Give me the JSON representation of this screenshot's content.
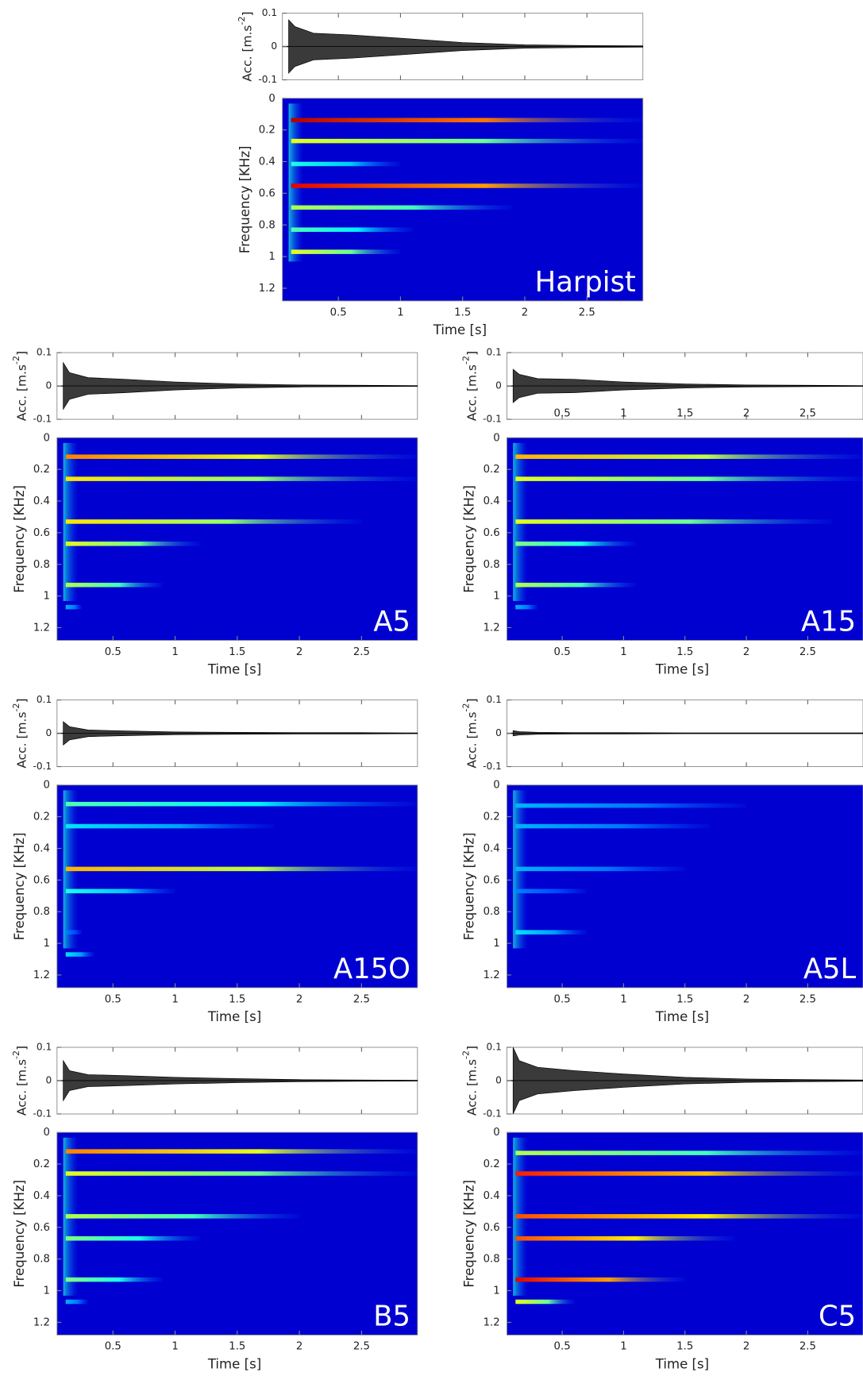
{
  "chart_data": [
    {
      "type": "spectrogram",
      "label": "Harpist",
      "xlabel": "Time [s]",
      "ylabel": "Frequency [KHz]",
      "xlim": [
        0.05,
        2.95
      ],
      "xticks": [
        0.5,
        1,
        1.5,
        2,
        2.5
      ],
      "ylim": [
        0,
        1.28
      ],
      "y_reversed": true,
      "yticks": [
        0,
        0.2,
        0.4,
        0.6,
        0.8,
        1,
        1.2
      ],
      "acc": {
        "ylabel": [
          "Acc. [m.s",
          "-2",
          "]"
        ],
        "ylim": [
          -0.1,
          0.1
        ],
        "yticks": [
          -0.1,
          0,
          0.1
        ],
        "xtick_labels": false,
        "x": [
          0.1,
          0.15,
          0.3,
          0.6,
          1,
          1.5,
          2,
          2.5,
          2.95
        ],
        "values": [
          0.08,
          0.06,
          0.04,
          0.035,
          0.025,
          0.012,
          0.005,
          0.003,
          0.002
        ]
      },
      "harmonics": {
        "freq": [
          0.138,
          0.27,
          0.415,
          0.553,
          0.69,
          0.83,
          0.97
        ],
        "end": [
          2.95,
          2.95,
          1.0,
          2.95,
          1.9,
          1.1,
          1.0
        ],
        "level": [
          0.95,
          0.6,
          0.4,
          0.9,
          0.55,
          0.45,
          0.6
        ]
      }
    },
    {
      "type": "spectrogram",
      "label": "A5",
      "xlabel": "Time [s]",
      "ylabel": "Frequency [KHz]",
      "xlim": [
        0.05,
        2.95
      ],
      "xticks": [
        0.5,
        1,
        1.5,
        2,
        2.5
      ],
      "ylim": [
        0,
        1.28
      ],
      "y_reversed": true,
      "yticks": [
        0,
        0.2,
        0.4,
        0.6,
        0.8,
        1,
        1.2
      ],
      "acc": {
        "ylabel": [
          "Acc. [m.s",
          "-2",
          "]"
        ],
        "ylim": [
          -0.1,
          0.1
        ],
        "yticks": [
          -0.1,
          0,
          0.1
        ],
        "xtick_labels": false,
        "x": [
          0.1,
          0.15,
          0.3,
          0.6,
          1,
          1.5,
          2,
          2.5,
          2.95
        ],
        "values": [
          0.07,
          0.04,
          0.025,
          0.02,
          0.012,
          0.006,
          0.003,
          0.002,
          0.001
        ]
      },
      "harmonics": {
        "freq": [
          0.12,
          0.26,
          0.53,
          0.67,
          0.93,
          1.07
        ],
        "end": [
          2.95,
          2.95,
          2.5,
          1.2,
          0.9,
          0.25
        ],
        "level": [
          0.75,
          0.65,
          0.65,
          0.6,
          0.55,
          0.3
        ]
      }
    },
    {
      "type": "spectrogram",
      "label": "A15",
      "xlabel": "Time [s]",
      "ylabel": "Frequency [KHz]",
      "xlim": [
        0.05,
        2.95
      ],
      "xticks": [
        0.5,
        1,
        1.5,
        2,
        2.5
      ],
      "ylim": [
        0,
        1.28
      ],
      "y_reversed": true,
      "yticks": [
        0,
        0.2,
        0.4,
        0.6,
        0.8,
        1,
        1.2
      ],
      "acc": {
        "ylabel": [
          "Acc. [m.s",
          "-2",
          "]"
        ],
        "ylim": [
          -0.1,
          0.1
        ],
        "yticks": [
          -0.1,
          0,
          0.1
        ],
        "xtick_labels": true,
        "x": [
          0.1,
          0.15,
          0.3,
          0.6,
          1,
          1.5,
          2,
          2.5,
          2.95
        ],
        "values": [
          0.05,
          0.035,
          0.022,
          0.02,
          0.012,
          0.006,
          0.003,
          0.002,
          0.001
        ]
      },
      "harmonics": {
        "freq": [
          0.12,
          0.26,
          0.53,
          0.67,
          0.93,
          1.07
        ],
        "end": [
          2.95,
          2.95,
          2.7,
          1.1,
          1.1,
          0.3
        ],
        "level": [
          0.7,
          0.6,
          0.6,
          0.5,
          0.55,
          0.3
        ]
      }
    },
    {
      "type": "spectrogram",
      "label": "A15O",
      "xlabel": "Time [s]",
      "ylabel": "Frequency [KHz]",
      "xlim": [
        0.05,
        2.95
      ],
      "xticks": [
        0.5,
        1,
        1.5,
        2,
        2.5
      ],
      "ylim": [
        0,
        1.28
      ],
      "y_reversed": true,
      "yticks": [
        0,
        0.2,
        0.4,
        0.6,
        0.8,
        1,
        1.2
      ],
      "acc": {
        "ylabel": [
          "Acc. [m.s",
          "-2",
          "]"
        ],
        "ylim": [
          -0.1,
          0.1
        ],
        "yticks": [
          -0.1,
          0,
          0.1
        ],
        "xtick_labels": false,
        "x": [
          0.1,
          0.15,
          0.3,
          0.6,
          1,
          1.5,
          2,
          2.5,
          2.95
        ],
        "values": [
          0.035,
          0.02,
          0.01,
          0.007,
          0.004,
          0.003,
          0.002,
          0.002,
          0.001
        ]
      },
      "harmonics": {
        "freq": [
          0.12,
          0.26,
          0.53,
          0.67,
          0.93,
          1.07
        ],
        "end": [
          2.95,
          1.8,
          2.95,
          1.0,
          0.25,
          0.35
        ],
        "level": [
          0.45,
          0.35,
          0.7,
          0.4,
          0.25,
          0.35
        ]
      }
    },
    {
      "type": "spectrogram",
      "label": "A5L",
      "xlabel": "Time [s]",
      "ylabel": "Frequency [KHz]",
      "xlim": [
        0.05,
        2.95
      ],
      "xticks": [
        0.5,
        1,
        1.5,
        2,
        2.5
      ],
      "ylim": [
        0,
        1.28
      ],
      "y_reversed": true,
      "yticks": [
        0,
        0.2,
        0.4,
        0.6,
        0.8,
        1,
        1.2
      ],
      "acc": {
        "ylabel": [
          "Acc. [m.s",
          "-2",
          "]"
        ],
        "ylim": [
          -0.1,
          0.1
        ],
        "yticks": [
          -0.1,
          0,
          0.1
        ],
        "xtick_labels": false,
        "x": [
          0.1,
          0.15,
          0.3,
          0.6,
          1,
          1.5,
          2,
          2.5,
          2.95
        ],
        "values": [
          0.008,
          0.005,
          0.003,
          0.002,
          0.002,
          0.001,
          0.001,
          0.001,
          0.001
        ]
      },
      "harmonics": {
        "freq": [
          0.13,
          0.26,
          0.53,
          0.67,
          0.93
        ],
        "end": [
          2.0,
          1.7,
          1.5,
          0.7,
          0.7
        ],
        "level": [
          0.3,
          0.3,
          0.3,
          0.25,
          0.35
        ]
      }
    },
    {
      "type": "spectrogram",
      "label": "B5",
      "xlabel": "Time [s]",
      "ylabel": "Frequency [KHz]",
      "xlim": [
        0.05,
        2.95
      ],
      "xticks": [
        0.5,
        1,
        1.5,
        2,
        2.5
      ],
      "ylim": [
        0,
        1.28
      ],
      "y_reversed": true,
      "yticks": [
        0,
        0.2,
        0.4,
        0.6,
        0.8,
        1,
        1.2
      ],
      "acc": {
        "ylabel": [
          "Acc. [m.s",
          "-2",
          "]"
        ],
        "ylim": [
          -0.1,
          0.1
        ],
        "yticks": [
          -0.1,
          0,
          0.1
        ],
        "xtick_labels": false,
        "x": [
          0.1,
          0.15,
          0.3,
          0.6,
          1,
          1.5,
          2,
          2.5,
          2.95
        ],
        "values": [
          0.06,
          0.03,
          0.018,
          0.015,
          0.01,
          0.006,
          0.003,
          0.002,
          0.001
        ]
      },
      "harmonics": {
        "freq": [
          0.12,
          0.26,
          0.53,
          0.67,
          0.93,
          1.07
        ],
        "end": [
          2.95,
          2.95,
          2.0,
          1.2,
          0.9,
          0.3
        ],
        "level": [
          0.75,
          0.6,
          0.55,
          0.5,
          0.5,
          0.3
        ]
      }
    },
    {
      "type": "spectrogram",
      "label": "C5",
      "xlabel": "Time [s]",
      "ylabel": "Frequency [KHz]",
      "xlim": [
        0.05,
        2.95
      ],
      "xticks": [
        0.5,
        1,
        1.5,
        2,
        2.5
      ],
      "ylim": [
        0,
        1.28
      ],
      "y_reversed": true,
      "yticks": [
        0,
        0.2,
        0.4,
        0.6,
        0.8,
        1,
        1.2
      ],
      "acc": {
        "ylabel": [
          "Acc. [m.s",
          "-2",
          "]"
        ],
        "ylim": [
          -0.1,
          0.1
        ],
        "yticks": [
          -0.1,
          0,
          0.1
        ],
        "xtick_labels": false,
        "x": [
          0.1,
          0.15,
          0.3,
          0.6,
          1,
          1.5,
          2,
          2.5,
          2.95
        ],
        "values": [
          0.1,
          0.06,
          0.04,
          0.03,
          0.02,
          0.01,
          0.005,
          0.003,
          0.002
        ]
      },
      "harmonics": {
        "freq": [
          0.13,
          0.26,
          0.53,
          0.67,
          0.93,
          1.07
        ],
        "end": [
          2.95,
          2.95,
          2.95,
          1.9,
          1.5,
          0.6
        ],
        "level": [
          0.55,
          0.85,
          0.8,
          0.8,
          0.9,
          0.6
        ]
      }
    }
  ]
}
